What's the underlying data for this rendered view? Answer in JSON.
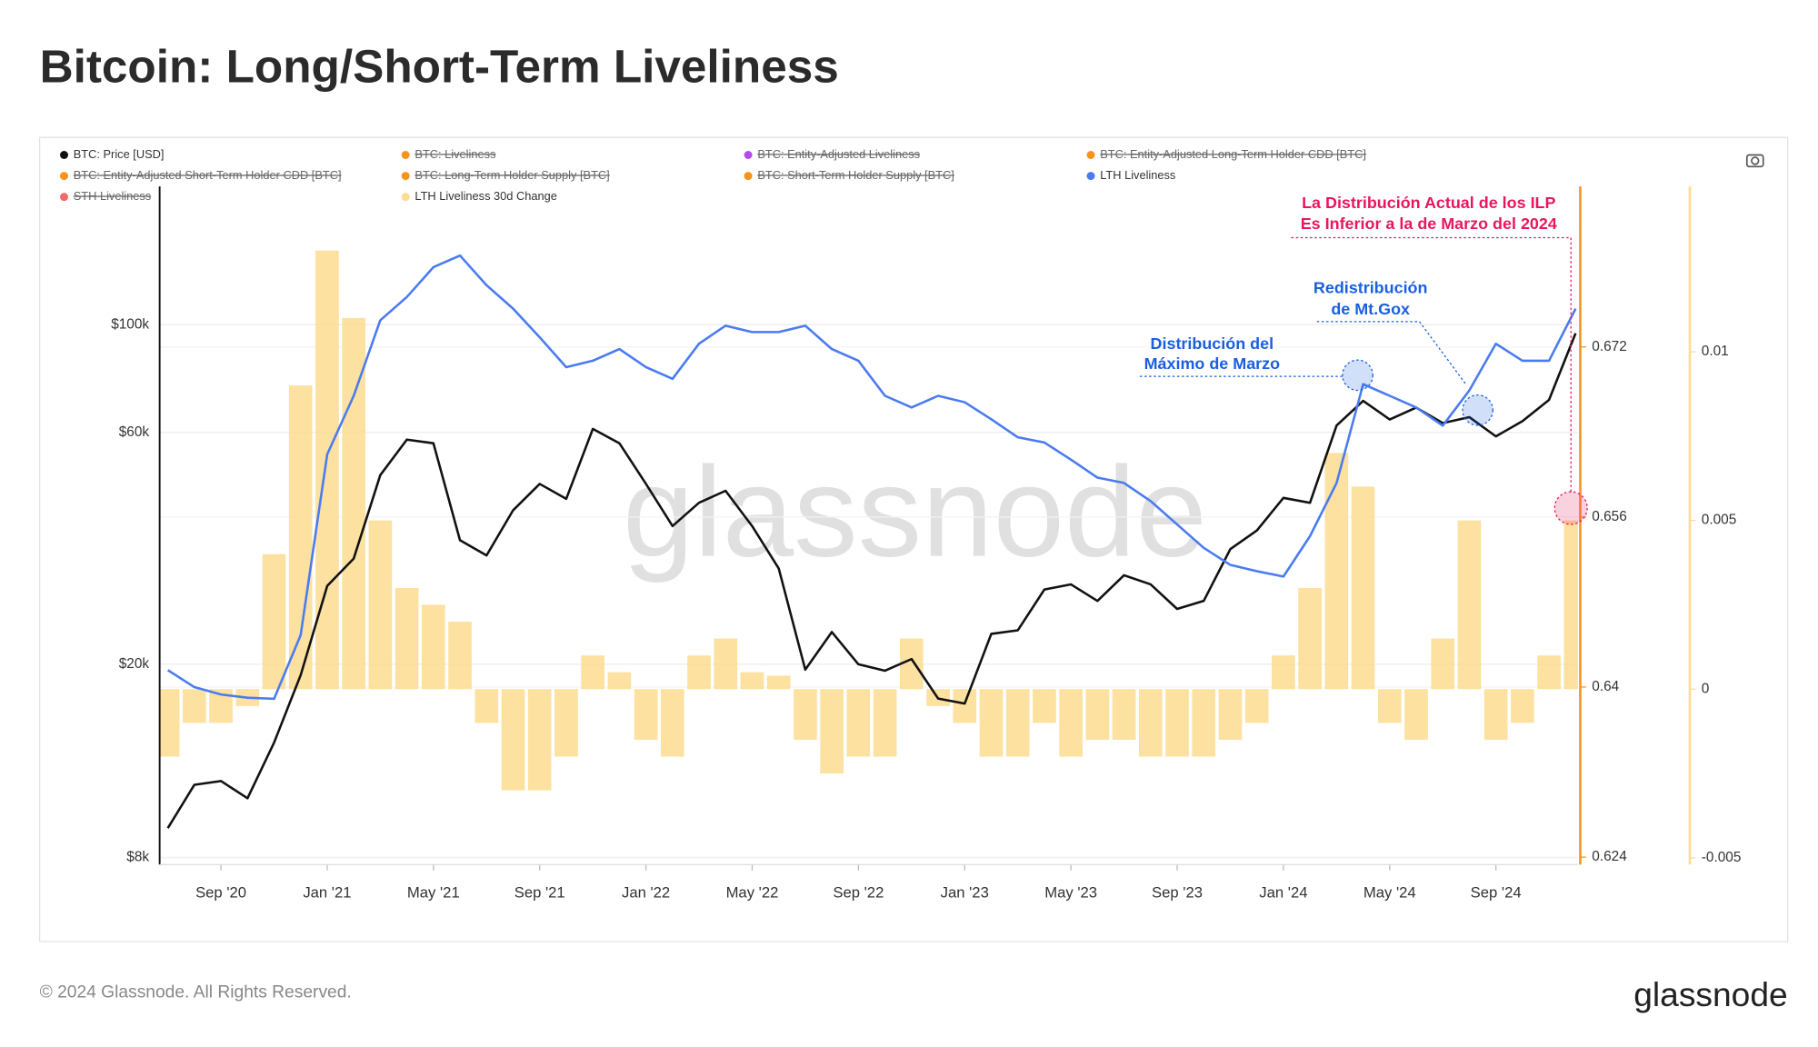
{
  "header": {
    "title": "Bitcoin: Long/Short-Term Liveliness"
  },
  "footer": {
    "copyright": "© 2024 Glassnode. All Rights Reserved.",
    "logo": "glassnode"
  },
  "chart_data": {
    "type": "line",
    "watermark": "glassnode",
    "x": [
      "2020-07",
      "2020-08",
      "2020-09",
      "2020-10",
      "2020-11",
      "2020-12",
      "2021-01",
      "2021-02",
      "2021-03",
      "2021-04",
      "2021-05",
      "2021-06",
      "2021-07",
      "2021-08",
      "2021-09",
      "2021-10",
      "2021-11",
      "2021-12",
      "2022-01",
      "2022-02",
      "2022-03",
      "2022-04",
      "2022-05",
      "2022-06",
      "2022-07",
      "2022-08",
      "2022-09",
      "2022-10",
      "2022-11",
      "2022-12",
      "2023-01",
      "2023-02",
      "2023-03",
      "2023-04",
      "2023-05",
      "2023-06",
      "2023-07",
      "2023-08",
      "2023-09",
      "2023-10",
      "2023-11",
      "2023-12",
      "2024-01",
      "2024-02",
      "2024-03",
      "2024-04",
      "2024-05",
      "2024-06",
      "2024-07",
      "2024-08",
      "2024-09",
      "2024-10",
      "2024-11",
      "2024-12"
    ],
    "xlim": [
      "2020-07",
      "2024-12"
    ],
    "xticks": [
      {
        "value": "2020-09",
        "label": "Sep '20"
      },
      {
        "value": "2021-01",
        "label": "Jan '21"
      },
      {
        "value": "2021-05",
        "label": "May '21"
      },
      {
        "value": "2021-09",
        "label": "Sep '21"
      },
      {
        "value": "2022-01",
        "label": "Jan '22"
      },
      {
        "value": "2022-05",
        "label": "May '22"
      },
      {
        "value": "2022-09",
        "label": "Sep '22"
      },
      {
        "value": "2023-01",
        "label": "Jan '23"
      },
      {
        "value": "2023-05",
        "label": "May '23"
      },
      {
        "value": "2023-09",
        "label": "Sep '23"
      },
      {
        "value": "2024-01",
        "label": "Jan '24"
      },
      {
        "value": "2024-05",
        "label": "May '24"
      },
      {
        "value": "2024-09",
        "label": "Sep '24"
      }
    ],
    "ylim": [
      7740,
      192500
    ],
    "log_y": true,
    "yticks": [
      {
        "value": 8000,
        "label": "$8k"
      },
      {
        "value": 20000,
        "label": "$20k"
      },
      {
        "value": 60000,
        "label": "$60k"
      },
      {
        "value": 100000,
        "label": "$100k"
      }
    ],
    "y2lim": [
      0.6233,
      0.6871
    ],
    "y2ticks": [
      0.624,
      0.64,
      0.656,
      0.672
    ],
    "y3lim": [
      -0.0052,
      0.0149
    ],
    "y3ticks": [
      -0.005,
      0,
      0.005,
      0.01
    ],
    "grid": true,
    "series": [
      {
        "name": "BTC: Price [USD]",
        "color": "#111111",
        "kind": "line",
        "axis": "y",
        "values": [
          9200,
          11300,
          11500,
          10600,
          13800,
          19000,
          29000,
          33000,
          49000,
          58000,
          57000,
          36000,
          33500,
          41500,
          47000,
          43800,
          61000,
          57000,
          47000,
          38500,
          43000,
          45500,
          38500,
          31500,
          19500,
          23300,
          20000,
          19400,
          20500,
          17000,
          16600,
          23100,
          23500,
          28500,
          29200,
          27000,
          30500,
          29200,
          26000,
          27000,
          34500,
          37700,
          44000,
          43000,
          62000,
          69700,
          63800,
          67500,
          62700,
          64500,
          58900,
          63300,
          70000,
          96000
        ]
      },
      {
        "name": "LTH Liveliness",
        "color": "#4a7bf0",
        "kind": "line",
        "axis": "y2",
        "values": [
          0.6416,
          0.64,
          0.6393,
          0.639,
          0.6389,
          0.6449,
          0.6619,
          0.6674,
          0.6745,
          0.6767,
          0.6795,
          0.6806,
          0.6778,
          0.6756,
          0.6729,
          0.6701,
          0.6707,
          0.6718,
          0.6701,
          0.669,
          0.6723,
          0.674,
          0.6734,
          0.6734,
          0.674,
          0.6718,
          0.6707,
          0.6674,
          0.6663,
          0.6674,
          0.6668,
          0.6652,
          0.6635,
          0.663,
          0.6614,
          0.6597,
          0.6592,
          0.6575,
          0.6553,
          0.6531,
          0.6515,
          0.6509,
          0.6504,
          0.6542,
          0.6592,
          0.6685,
          0.6674,
          0.6663,
          0.6646,
          0.6679,
          0.6723,
          0.6707,
          0.6707,
          0.6756
        ]
      },
      {
        "name": "LTH Liveliness 30d Change",
        "color": "#fcdc8f",
        "kind": "bar",
        "axis": "y3",
        "values": [
          -0.002,
          -0.001,
          -0.001,
          -0.0005,
          0.004,
          0.009,
          0.013,
          0.011,
          0.005,
          0.003,
          0.0025,
          0.002,
          -0.001,
          -0.003,
          -0.003,
          -0.002,
          0.001,
          0.0005,
          -0.0015,
          -0.002,
          0.001,
          0.0015,
          0.0005,
          0.0004,
          -0.0015,
          -0.0025,
          -0.002,
          -0.002,
          0.0015,
          -0.0005,
          -0.001,
          -0.002,
          -0.002,
          -0.001,
          -0.002,
          -0.0015,
          -0.0015,
          -0.002,
          -0.002,
          -0.002,
          -0.0015,
          -0.001,
          0.001,
          0.003,
          0.007,
          0.006,
          -0.001,
          -0.0015,
          0.0015,
          0.005,
          -0.0015,
          -0.001,
          0.001,
          0.005
        ]
      }
    ],
    "hidden_series": [
      {
        "name": "BTC: Liveliness",
        "color": "#f7931a"
      },
      {
        "name": "BTC: Entity-Adjusted Liveliness",
        "color": "#b44ae8"
      },
      {
        "name": "BTC: Entity-Adjusted Long-Term Holder CDD [BTC]",
        "color": "#f7931a"
      },
      {
        "name": "BTC: Entity-Adjusted Short-Term Holder CDD [BTC]",
        "color": "#f7931a"
      },
      {
        "name": "BTC: Long-Term Holder Supply [BTC]",
        "color": "#f7931a"
      },
      {
        "name": "BTC: Short-Term Holder Supply [BTC]",
        "color": "#f7931a"
      },
      {
        "name": "STH Liveliness",
        "color": "#f26a6a"
      }
    ],
    "annotations": [
      {
        "lines": [
          "La Distribución Actual de los ILP",
          "Es Inferior a la de Marzo del 2024"
        ],
        "color": "#e8175d"
      },
      {
        "lines": [
          "Redistribución",
          "de Mt.Gox"
        ],
        "color": "#1a5fe0"
      },
      {
        "lines": [
          "Distribución del",
          "Máximo de Marzo"
        ],
        "color": "#1a5fe0"
      }
    ]
  }
}
